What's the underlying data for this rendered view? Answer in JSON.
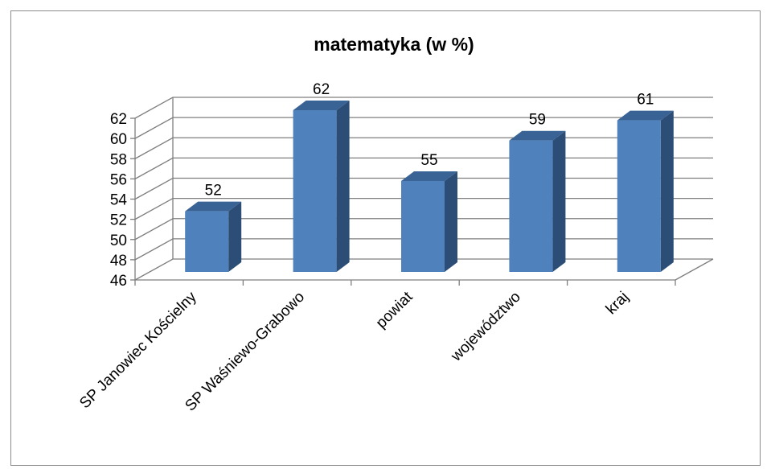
{
  "chart_data": {
    "type": "bar",
    "title": "matematyka (w %)",
    "xlabel": "",
    "ylabel": "",
    "categories": [
      "SP Janowiec Kościelny",
      "SP Waśniewo-Grabowo",
      "powiat",
      "województwo",
      "kraj"
    ],
    "values": [
      52,
      62,
      55,
      59,
      61
    ],
    "data_labels": [
      "52",
      "62",
      "55",
      "59",
      "61"
    ],
    "ylim": [
      46,
      62
    ],
    "yticks": [
      "46",
      "48",
      "50",
      "52",
      "54",
      "56",
      "58",
      "60",
      "62"
    ],
    "grid": true,
    "legend": "none",
    "style": "3d-column"
  },
  "colors": {
    "bar_front": "#4f81bd",
    "bar_side": "#2c4d75",
    "bar_top": "#3a6395",
    "grid": "#7f7f7f",
    "frame": "#8c8c8c"
  }
}
